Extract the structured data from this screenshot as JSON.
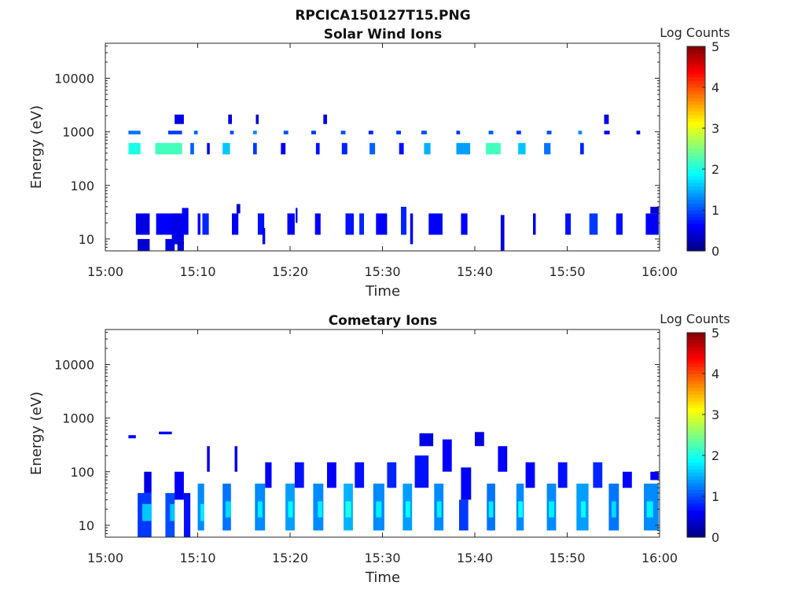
{
  "figure": {
    "title": "RPCICA150127T15.PNG"
  },
  "chart_data": [
    {
      "type": "heatmap",
      "title": "Solar Wind Ions",
      "xlabel": "Time",
      "ylabel": "Energy (eV)",
      "x_ticks": [
        "15:00",
        "15:10",
        "15:20",
        "15:30",
        "15:40",
        "15:50",
        "16:00"
      ],
      "xlim_minutes": [
        0,
        60
      ],
      "y_scale": "log",
      "ylim": [
        6,
        45000
      ],
      "y_ticks": [
        10,
        100,
        1000,
        10000
      ],
      "y_tick_labels": [
        "10",
        "100",
        "1000",
        "10000"
      ],
      "colorbar": {
        "label": "Log Counts",
        "range": [
          0,
          5
        ],
        "ticks": [
          "0",
          "1",
          "2",
          "3",
          "4",
          "5"
        ],
        "colormap": "jet"
      },
      "cells": [
        [
          2.5,
          3.8,
          900,
          1050,
          1.2
        ],
        [
          2.5,
          3.8,
          380,
          620,
          2.0
        ],
        [
          3.5,
          4.8,
          6,
          10,
          0.4
        ],
        [
          3.3,
          4.8,
          12,
          30,
          0.5
        ],
        [
          5.4,
          8.3,
          380,
          620,
          2.2
        ],
        [
          5.5,
          8.2,
          12,
          30,
          0.6
        ],
        [
          6.5,
          7.5,
          6,
          10,
          0.5
        ],
        [
          6.8,
          8.3,
          900,
          1050,
          0.9
        ],
        [
          7.5,
          8.5,
          1400,
          2100,
          0.5
        ],
        [
          7.2,
          8.5,
          8,
          30,
          0.5
        ],
        [
          7.8,
          8.5,
          6,
          9,
          0.4
        ],
        [
          8.3,
          9.0,
          12,
          38,
          0.6
        ],
        [
          9.2,
          9.6,
          380,
          620,
          1.1
        ],
        [
          9.6,
          10.0,
          900,
          1050,
          1.1
        ],
        [
          10.0,
          10.3,
          12,
          30,
          0.6
        ],
        [
          10.5,
          11.2,
          12,
          30,
          0.8
        ],
        [
          11.0,
          11.3,
          380,
          620,
          0.5
        ],
        [
          12.7,
          13.5,
          380,
          620,
          1.6
        ],
        [
          13.3,
          13.7,
          1400,
          2100,
          0.5
        ],
        [
          13.7,
          14.4,
          12,
          30,
          0.6
        ],
        [
          13.5,
          13.9,
          900,
          1050,
          1.0
        ],
        [
          14.2,
          14.6,
          30,
          45,
          0.4
        ],
        [
          16.0,
          16.4,
          380,
          620,
          0.9
        ],
        [
          16.0,
          16.4,
          900,
          1050,
          1.3
        ],
        [
          16.3,
          16.6,
          1400,
          2100,
          0.4
        ],
        [
          16.5,
          17.2,
          12,
          30,
          0.7
        ],
        [
          17.0,
          17.3,
          8,
          16,
          0.6
        ],
        [
          19.0,
          19.5,
          380,
          620,
          0.6
        ],
        [
          19.3,
          19.8,
          900,
          1050,
          1.0
        ],
        [
          19.7,
          20.5,
          12,
          30,
          0.6
        ],
        [
          20.6,
          20.8,
          20,
          38,
          0.5
        ],
        [
          22.3,
          22.8,
          900,
          1050,
          0.9
        ],
        [
          22.7,
          23.3,
          12,
          30,
          0.6
        ],
        [
          22.8,
          23.2,
          380,
          620,
          0.7
        ],
        [
          23.6,
          24.0,
          1400,
          2100,
          0.5
        ],
        [
          25.5,
          26.0,
          900,
          1050,
          1.0
        ],
        [
          25.6,
          26.2,
          380,
          620,
          0.8
        ],
        [
          26.0,
          26.9,
          12,
          30,
          0.7
        ],
        [
          27.5,
          28.0,
          12,
          30,
          0.8
        ],
        [
          28.5,
          29.0,
          900,
          1050,
          0.8
        ],
        [
          28.6,
          29.2,
          380,
          620,
          1.1
        ],
        [
          29.3,
          30.5,
          12,
          30,
          0.6
        ],
        [
          31.5,
          32.0,
          900,
          1050,
          0.9
        ],
        [
          31.8,
          32.3,
          380,
          620,
          0.7
        ],
        [
          32.0,
          32.6,
          12,
          40,
          0.8
        ],
        [
          33.0,
          33.3,
          8,
          30,
          0.5
        ],
        [
          34.2,
          34.8,
          900,
          1050,
          1.0
        ],
        [
          34.5,
          35.2,
          380,
          620,
          1.5
        ],
        [
          35.0,
          36.5,
          12,
          30,
          0.6
        ],
        [
          38.0,
          38.4,
          900,
          1050,
          0.9
        ],
        [
          38.5,
          39.2,
          12,
          30,
          0.6
        ],
        [
          38.0,
          39.5,
          380,
          620,
          1.4
        ],
        [
          41.5,
          42.0,
          900,
          1050,
          1.1
        ],
        [
          41.2,
          42.8,
          380,
          620,
          2.2
        ],
        [
          42.8,
          43.2,
          6,
          28,
          0.5
        ],
        [
          44.5,
          45.0,
          900,
          1050,
          0.9
        ],
        [
          44.7,
          45.5,
          380,
          620,
          1.6
        ],
        [
          46.3,
          46.6,
          12,
          30,
          0.5
        ],
        [
          47.5,
          48.2,
          380,
          620,
          1.2
        ],
        [
          47.8,
          48.3,
          900,
          1050,
          1.0
        ],
        [
          49.8,
          50.4,
          12,
          30,
          0.7
        ],
        [
          51.2,
          51.6,
          900,
          1050,
          1.3
        ],
        [
          51.4,
          51.8,
          380,
          620,
          0.8
        ],
        [
          52.4,
          53.3,
          12,
          30,
          0.9
        ],
        [
          54.0,
          54.6,
          900,
          1050,
          0.6
        ],
        [
          54.0,
          54.5,
          1400,
          2100,
          0.5
        ],
        [
          55.3,
          56.0,
          12,
          30,
          0.7
        ],
        [
          57.5,
          57.9,
          900,
          1050,
          0.5
        ],
        [
          58.5,
          59.9,
          12,
          30,
          0.6
        ],
        [
          59.0,
          59.9,
          30,
          40,
          0.4
        ]
      ]
    },
    {
      "type": "heatmap",
      "title": "Cometary Ions",
      "xlabel": "Time",
      "ylabel": "Energy (eV)",
      "x_ticks": [
        "15:00",
        "15:10",
        "15:20",
        "15:30",
        "15:40",
        "15:50",
        "16:00"
      ],
      "xlim_minutes": [
        0,
        60
      ],
      "y_scale": "log",
      "ylim": [
        6,
        45000
      ],
      "y_ticks": [
        10,
        100,
        1000,
        10000
      ],
      "y_tick_labels": [
        "10",
        "100",
        "1000",
        "10000"
      ],
      "colorbar": {
        "label": "Log Counts",
        "range": [
          0,
          5
        ],
        "ticks": [
          "0",
          "1",
          "2",
          "3",
          "4",
          "5"
        ],
        "colormap": "jet"
      },
      "cells": [
        [
          2.5,
          3.3,
          420,
          480,
          0.6
        ],
        [
          3.5,
          5.0,
          6,
          40,
          0.9
        ],
        [
          4.0,
          5.0,
          12,
          25,
          1.6
        ],
        [
          4.2,
          5.0,
          40,
          100,
          0.5
        ],
        [
          5.8,
          7.2,
          500,
          560,
          0.6
        ],
        [
          6.5,
          7.5,
          6,
          40,
          1.0
        ],
        [
          7.0,
          7.5,
          12,
          25,
          1.6
        ],
        [
          7.5,
          8.5,
          30,
          100,
          0.6
        ],
        [
          8.5,
          9.2,
          6,
          40,
          0.7
        ],
        [
          10.0,
          10.7,
          8,
          60,
          1.3
        ],
        [
          10.3,
          10.7,
          12,
          25,
          1.8
        ],
        [
          11.0,
          11.3,
          100,
          300,
          0.5
        ],
        [
          12.7,
          13.6,
          8,
          60,
          1.2
        ],
        [
          13.0,
          13.6,
          14,
          28,
          1.7
        ],
        [
          14.0,
          14.3,
          100,
          300,
          0.5
        ],
        [
          16.2,
          17.3,
          8,
          60,
          1.3
        ],
        [
          16.5,
          17.0,
          14,
          28,
          1.8
        ],
        [
          17.3,
          18.0,
          50,
          150,
          0.6
        ],
        [
          19.5,
          20.5,
          8,
          60,
          1.4
        ],
        [
          19.8,
          20.3,
          14,
          28,
          1.9
        ],
        [
          20.5,
          21.5,
          50,
          150,
          0.7
        ],
        [
          22.5,
          23.6,
          8,
          60,
          1.3
        ],
        [
          23.0,
          23.5,
          14,
          28,
          1.8
        ],
        [
          24.0,
          25.0,
          50,
          150,
          0.6
        ],
        [
          25.8,
          26.8,
          8,
          60,
          1.5
        ],
        [
          26.0,
          26.6,
          14,
          28,
          2.0
        ],
        [
          27.0,
          28.0,
          50,
          150,
          0.7
        ],
        [
          29.0,
          30.2,
          8,
          60,
          1.3
        ],
        [
          29.3,
          29.9,
          14,
          28,
          1.8
        ],
        [
          30.5,
          31.5,
          50,
          150,
          0.8
        ],
        [
          32.2,
          33.2,
          8,
          60,
          1.4
        ],
        [
          32.5,
          33.0,
          14,
          28,
          1.9
        ],
        [
          33.5,
          35.0,
          50,
          200,
          0.7
        ],
        [
          34.0,
          35.5,
          300,
          520,
          0.5
        ],
        [
          35.6,
          36.6,
          8,
          60,
          1.3
        ],
        [
          35.9,
          36.4,
          14,
          28,
          1.8
        ],
        [
          36.5,
          37.5,
          100,
          400,
          0.6
        ],
        [
          38.5,
          39.6,
          30,
          120,
          0.6
        ],
        [
          38.3,
          39.3,
          8,
          30,
          0.9
        ],
        [
          40.0,
          41.0,
          300,
          550,
          0.5
        ],
        [
          41.3,
          42.2,
          8,
          60,
          1.2
        ],
        [
          41.5,
          42.0,
          14,
          28,
          1.8
        ],
        [
          42.5,
          43.5,
          100,
          300,
          0.6
        ],
        [
          44.5,
          45.3,
          8,
          60,
          1.3
        ],
        [
          44.7,
          45.2,
          14,
          28,
          1.9
        ],
        [
          45.5,
          46.5,
          50,
          150,
          0.6
        ],
        [
          47.8,
          48.8,
          8,
          60,
          1.3
        ],
        [
          48.0,
          48.6,
          14,
          28,
          1.8
        ],
        [
          49.0,
          50.0,
          50,
          150,
          0.7
        ],
        [
          51.0,
          52.3,
          8,
          60,
          1.4
        ],
        [
          51.5,
          52.0,
          14,
          28,
          1.9
        ],
        [
          52.8,
          53.8,
          50,
          150,
          0.8
        ],
        [
          54.5,
          55.6,
          8,
          60,
          1.2
        ],
        [
          54.8,
          55.3,
          14,
          28,
          1.7
        ],
        [
          56.0,
          57.0,
          50,
          100,
          0.6
        ],
        [
          58.3,
          59.9,
          8,
          60,
          1.3
        ],
        [
          58.6,
          59.3,
          14,
          28,
          1.8
        ],
        [
          59.0,
          59.9,
          70,
          100,
          0.6
        ]
      ]
    }
  ]
}
